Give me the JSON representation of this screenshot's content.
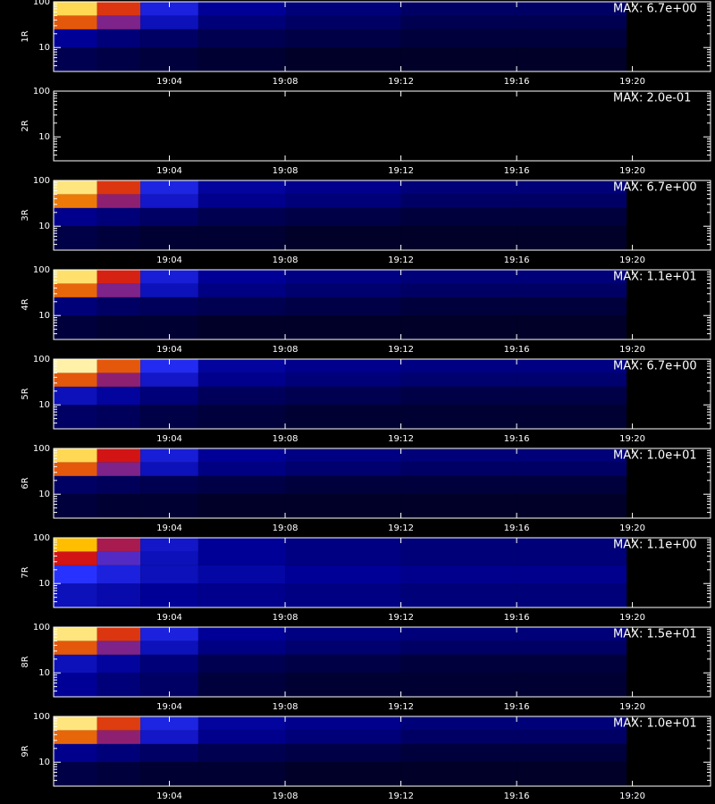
{
  "chart_data": [
    {
      "type": "heatmap",
      "ylabel": "1R",
      "annotation": "MAX: 6.7e+00",
      "log_y": true,
      "xlim": [
        0,
        22.7
      ],
      "ylim": [
        3,
        100
      ],
      "xticks": [
        {
          "value": 4,
          "label": "19:04"
        },
        {
          "value": 8,
          "label": "19:08"
        },
        {
          "value": 12,
          "label": "19:12"
        },
        {
          "value": 16,
          "label": "19:16"
        },
        {
          "value": 20,
          "label": "19:20"
        }
      ],
      "yticks": [
        10,
        100
      ],
      "yminor": [
        3,
        4,
        5,
        6,
        7,
        8,
        9,
        20,
        30,
        40,
        50,
        60,
        70,
        80,
        90
      ],
      "xbins": [
        0,
        1.5,
        3,
        5,
        8,
        12,
        16,
        19.8
      ],
      "ybins": [
        3,
        10,
        25,
        50,
        100
      ],
      "z": [
        [
          0.08,
          0.07,
          0.06,
          0.05,
          0.04,
          0.04,
          0.04
        ],
        [
          0.15,
          0.12,
          0.1,
          0.08,
          0.07,
          0.06,
          0.06
        ],
        [
          0.6,
          0.4,
          0.2,
          0.12,
          0.1,
          0.08,
          0.08
        ],
        [
          0.85,
          0.55,
          0.25,
          0.15,
          0.12,
          0.1,
          0.1
        ]
      ]
    },
    {
      "type": "heatmap",
      "ylabel": "2R",
      "annotation": "MAX: 2.0e-01",
      "log_y": true,
      "xlim": [
        0,
        22.7
      ],
      "ylim": [
        3,
        100
      ],
      "xticks": [
        {
          "value": 4,
          "label": "19:04"
        },
        {
          "value": 8,
          "label": "19:08"
        },
        {
          "value": 12,
          "label": "19:12"
        },
        {
          "value": 16,
          "label": "19:16"
        },
        {
          "value": 20,
          "label": "19:20"
        }
      ],
      "yticks": [
        10,
        100
      ],
      "yminor": [
        3,
        4,
        5,
        6,
        7,
        8,
        9,
        20,
        30,
        40,
        50,
        60,
        70,
        80,
        90
      ],
      "xbins": [
        0,
        1.5,
        3,
        5,
        8,
        12,
        16,
        19.8
      ],
      "ybins": [
        3,
        10,
        25,
        50,
        100
      ],
      "z": [
        [
          0,
          0,
          0,
          0,
          0,
          0,
          0
        ],
        [
          0,
          0,
          0,
          0,
          0,
          0,
          0
        ],
        [
          0,
          0,
          0,
          0,
          0,
          0,
          0
        ],
        [
          0,
          0,
          0,
          0,
          0,
          0,
          0
        ]
      ]
    },
    {
      "type": "heatmap",
      "ylabel": "3R",
      "annotation": "MAX: 6.7e+00",
      "log_y": true,
      "xlim": [
        0,
        22.7
      ],
      "ylim": [
        3,
        100
      ],
      "xticks": [
        {
          "value": 4,
          "label": "19:04"
        },
        {
          "value": 8,
          "label": "19:08"
        },
        {
          "value": 12,
          "label": "19:12"
        },
        {
          "value": 16,
          "label": "19:16"
        },
        {
          "value": 20,
          "label": "19:20"
        }
      ],
      "yticks": [
        10,
        100
      ],
      "yminor": [
        3,
        4,
        5,
        6,
        7,
        8,
        9,
        20,
        30,
        40,
        50,
        60,
        70,
        80,
        90
      ],
      "xbins": [
        0,
        1.5,
        3,
        5,
        8,
        12,
        16,
        19.8
      ],
      "ybins": [
        3,
        10,
        25,
        50,
        100
      ],
      "z": [
        [
          0.07,
          0.06,
          0.05,
          0.05,
          0.04,
          0.04,
          0.04
        ],
        [
          0.14,
          0.12,
          0.1,
          0.08,
          0.07,
          0.06,
          0.06
        ],
        [
          0.65,
          0.42,
          0.22,
          0.14,
          0.12,
          0.1,
          0.1
        ],
        [
          0.9,
          0.55,
          0.26,
          0.16,
          0.14,
          0.12,
          0.12
        ]
      ]
    },
    {
      "type": "heatmap",
      "ylabel": "4R",
      "annotation": "MAX: 1.1e+01",
      "log_y": true,
      "xlim": [
        0,
        22.7
      ],
      "ylim": [
        3,
        100
      ],
      "xticks": [
        {
          "value": 4,
          "label": "19:04"
        },
        {
          "value": 8,
          "label": "19:08"
        },
        {
          "value": 12,
          "label": "19:12"
        },
        {
          "value": 16,
          "label": "19:16"
        },
        {
          "value": 20,
          "label": "19:20"
        }
      ],
      "yticks": [
        10,
        100
      ],
      "yminor": [
        3,
        4,
        5,
        6,
        7,
        8,
        9,
        20,
        30,
        40,
        50,
        60,
        70,
        80,
        90
      ],
      "xbins": [
        0,
        1.5,
        3,
        5,
        8,
        12,
        16,
        19.8
      ],
      "ybins": [
        3,
        10,
        25,
        50,
        100
      ],
      "z": [
        [
          0.06,
          0.05,
          0.05,
          0.04,
          0.04,
          0.04,
          0.04
        ],
        [
          0.12,
          0.1,
          0.09,
          0.08,
          0.07,
          0.06,
          0.06
        ],
        [
          0.62,
          0.4,
          0.2,
          0.13,
          0.11,
          0.1,
          0.1
        ],
        [
          0.88,
          0.52,
          0.24,
          0.15,
          0.13,
          0.12,
          0.12
        ]
      ]
    },
    {
      "type": "heatmap",
      "ylabel": "5R",
      "annotation": "MAX: 6.7e+00",
      "log_y": true,
      "xlim": [
        0,
        22.7
      ],
      "ylim": [
        3,
        100
      ],
      "xticks": [
        {
          "value": 4,
          "label": "19:04"
        },
        {
          "value": 8,
          "label": "19:08"
        },
        {
          "value": 12,
          "label": "19:12"
        },
        {
          "value": 16,
          "label": "19:16"
        },
        {
          "value": 20,
          "label": "19:20"
        }
      ],
      "yticks": [
        10,
        100
      ],
      "yminor": [
        3,
        4,
        5,
        6,
        7,
        8,
        9,
        20,
        30,
        40,
        50,
        60,
        70,
        80,
        90
      ],
      "xbins": [
        0,
        1.5,
        3,
        5,
        8,
        12,
        16,
        19.8
      ],
      "ybins": [
        3,
        10,
        25,
        50,
        100
      ],
      "z": [
        [
          0.1,
          0.09,
          0.07,
          0.06,
          0.05,
          0.05,
          0.05
        ],
        [
          0.2,
          0.16,
          0.12,
          0.09,
          0.08,
          0.07,
          0.07
        ],
        [
          0.6,
          0.42,
          0.22,
          0.14,
          0.12,
          0.11,
          0.11
        ],
        [
          0.95,
          0.6,
          0.28,
          0.16,
          0.14,
          0.13,
          0.13
        ]
      ]
    },
    {
      "type": "heatmap",
      "ylabel": "6R",
      "annotation": "MAX: 1.0e+01",
      "log_y": true,
      "xlim": [
        0,
        22.7
      ],
      "ylim": [
        3,
        100
      ],
      "xticks": [
        {
          "value": 4,
          "label": "19:04"
        },
        {
          "value": 8,
          "label": "19:08"
        },
        {
          "value": 12,
          "label": "19:12"
        },
        {
          "value": 16,
          "label": "19:16"
        },
        {
          "value": 20,
          "label": "19:20"
        }
      ],
      "yticks": [
        10,
        100
      ],
      "yminor": [
        3,
        4,
        5,
        6,
        7,
        8,
        9,
        20,
        30,
        40,
        50,
        60,
        70,
        80,
        90
      ],
      "xbins": [
        0,
        1.5,
        3,
        5,
        8,
        12,
        16,
        19.8
      ],
      "ybins": [
        3,
        10,
        25,
        50,
        100
      ],
      "z": [
        [
          0.06,
          0.05,
          0.05,
          0.04,
          0.04,
          0.04,
          0.04
        ],
        [
          0.1,
          0.09,
          0.08,
          0.07,
          0.06,
          0.06,
          0.06
        ],
        [
          0.6,
          0.4,
          0.2,
          0.13,
          0.11,
          0.1,
          0.1
        ],
        [
          0.85,
          0.5,
          0.24,
          0.15,
          0.13,
          0.12,
          0.12
        ]
      ]
    },
    {
      "type": "heatmap",
      "ylabel": "7R",
      "annotation": "MAX: 1.1e+00",
      "log_y": true,
      "xlim": [
        0,
        22.7
      ],
      "ylim": [
        3,
        100
      ],
      "xticks": [
        {
          "value": 4,
          "label": "19:04"
        },
        {
          "value": 8,
          "label": "19:08"
        },
        {
          "value": 12,
          "label": "19:12"
        },
        {
          "value": 16,
          "label": "19:16"
        },
        {
          "value": 20,
          "label": "19:20"
        }
      ],
      "yticks": [
        10,
        100
      ],
      "yminor": [
        3,
        4,
        5,
        6,
        7,
        8,
        9,
        20,
        30,
        40,
        50,
        60,
        70,
        80,
        90
      ],
      "xbins": [
        0,
        1.5,
        3,
        5,
        8,
        12,
        16,
        19.8
      ],
      "ybins": [
        3,
        10,
        25,
        50,
        100
      ],
      "z": [
        [
          0.2,
          0.18,
          0.15,
          0.14,
          0.13,
          0.12,
          0.12
        ],
        [
          0.3,
          0.25,
          0.2,
          0.17,
          0.15,
          0.14,
          0.14
        ],
        [
          0.5,
          0.35,
          0.2,
          0.15,
          0.13,
          0.12,
          0.12
        ],
        [
          0.75,
          0.45,
          0.22,
          0.15,
          0.13,
          0.12,
          0.12
        ]
      ]
    },
    {
      "type": "heatmap",
      "ylabel": "8R",
      "annotation": "MAX: 1.5e+01",
      "log_y": true,
      "xlim": [
        0,
        22.7
      ],
      "ylim": [
        3,
        100
      ],
      "xticks": [
        {
          "value": 4,
          "label": "19:04"
        },
        {
          "value": 8,
          "label": "19:08"
        },
        {
          "value": 12,
          "label": "19:12"
        },
        {
          "value": 16,
          "label": "19:16"
        },
        {
          "value": 20,
          "label": "19:20"
        }
      ],
      "yticks": [
        10,
        100
      ],
      "yminor": [
        3,
        4,
        5,
        6,
        7,
        8,
        9,
        20,
        30,
        40,
        50,
        60,
        70,
        80,
        90
      ],
      "xbins": [
        0,
        1.5,
        3,
        5,
        8,
        12,
        16,
        19.8
      ],
      "ybins": [
        3,
        10,
        25,
        50,
        100
      ],
      "z": [
        [
          0.15,
          0.12,
          0.1,
          0.06,
          0.05,
          0.05,
          0.05
        ],
        [
          0.2,
          0.16,
          0.12,
          0.08,
          0.07,
          0.06,
          0.06
        ],
        [
          0.6,
          0.4,
          0.2,
          0.13,
          0.11,
          0.1,
          0.1
        ],
        [
          0.9,
          0.55,
          0.25,
          0.15,
          0.13,
          0.12,
          0.12
        ]
      ]
    },
    {
      "type": "heatmap",
      "ylabel": "9R",
      "annotation": "MAX: 1.0e+01",
      "log_y": true,
      "xlim": [
        0,
        22.7
      ],
      "ylim": [
        3,
        100
      ],
      "xticks": [
        {
          "value": 4,
          "label": "19:04"
        },
        {
          "value": 8,
          "label": "19:08"
        },
        {
          "value": 12,
          "label": "19:12"
        },
        {
          "value": 16,
          "label": "19:16"
        },
        {
          "value": 20,
          "label": "19:20"
        }
      ],
      "yticks": [
        10,
        100
      ],
      "yminor": [
        3,
        4,
        5,
        6,
        7,
        8,
        9,
        20,
        30,
        40,
        50,
        60,
        70,
        80,
        90
      ],
      "xbins": [
        0,
        1.5,
        3,
        5,
        8,
        12,
        16,
        19.8
      ],
      "ybins": [
        3,
        10,
        25,
        50,
        100
      ],
      "z": [
        [
          0.07,
          0.06,
          0.05,
          0.05,
          0.04,
          0.04,
          0.04
        ],
        [
          0.14,
          0.12,
          0.1,
          0.08,
          0.07,
          0.06,
          0.06
        ],
        [
          0.62,
          0.42,
          0.22,
          0.14,
          0.12,
          0.1,
          0.1
        ],
        [
          0.9,
          0.56,
          0.26,
          0.16,
          0.14,
          0.12,
          0.12
        ]
      ]
    }
  ]
}
